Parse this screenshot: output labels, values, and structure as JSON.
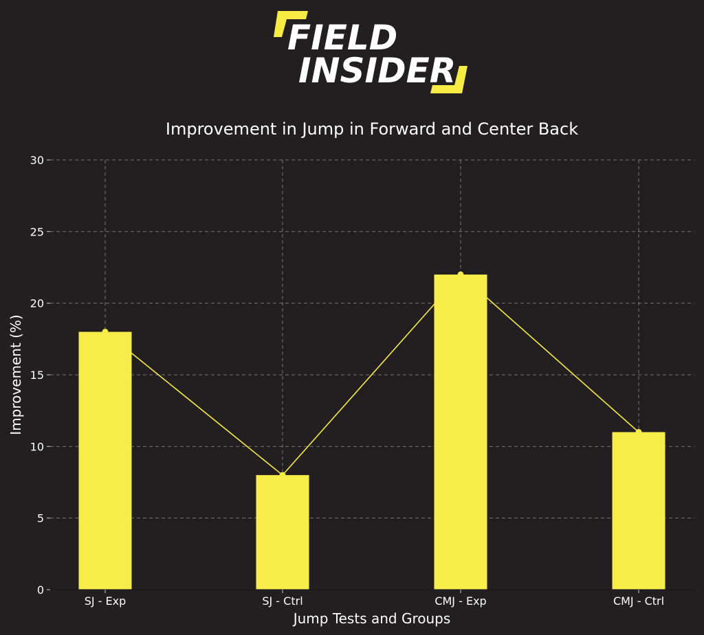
{
  "logo": {
    "line1": "FIELD",
    "line2": "INSIDER",
    "text_color": "#ffffff",
    "accent_color": "#f6ec44"
  },
  "chart_data": {
    "type": "bar",
    "title": "Improvement in Jump in Forward and Center Back",
    "xlabel": "Jump Tests and Groups",
    "ylabel": "Improvement (%)",
    "categories": [
      "SJ - Exp",
      "SJ - Ctrl",
      "CMJ - Exp",
      "CMJ - Ctrl"
    ],
    "values": [
      18,
      8,
      22,
      11
    ],
    "overlay_line": true,
    "ylim": [
      0,
      30
    ],
    "yticks": [
      0,
      5,
      10,
      15,
      20,
      25,
      30
    ],
    "grid": true,
    "bar_color": "#f6ec4a",
    "line_color": "#f6ec4a",
    "background": "#231f20",
    "text_color": "#ffffff",
    "grid_color": "#8a8a8a"
  }
}
